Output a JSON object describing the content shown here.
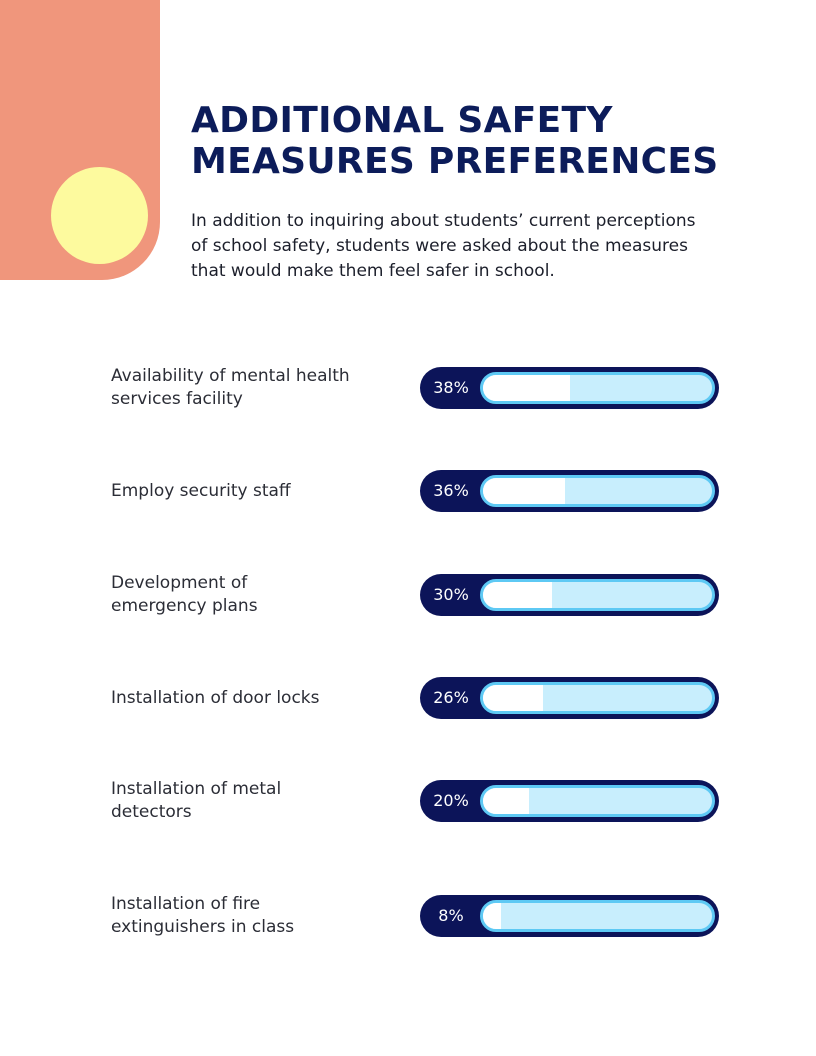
{
  "title": {
    "line1": "ADDITIONAL SAFETY",
    "line2": "MEASURES PREFERENCES"
  },
  "intro": {
    "line1": "In addition to inquiring about students’ current perceptions",
    "line2": "of school safety, students were asked about the measures",
    "line3": "that would make them feel safer in school."
  },
  "colors": {
    "title": "#0c1c5a",
    "deco_block": "#f0967c",
    "deco_circle": "#fdfa9e",
    "bar_pill": "#0c1459",
    "track_border": "#5ec9f4",
    "track_bg": "#c8eefd",
    "fill": "#ffffff"
  },
  "chart_data": {
    "type": "bar",
    "orientation": "horizontal",
    "categories": [
      [
        "Availability of mental health",
        "services facility"
      ],
      [
        "Employ security staff"
      ],
      [
        "Development of",
        "emergency plans"
      ],
      [
        "Installation of door locks"
      ],
      [
        "Installation of metal",
        "detectors"
      ],
      [
        "Installation of fire",
        "extinguishers in class"
      ]
    ],
    "values": [
      38,
      36,
      30,
      26,
      20,
      8
    ],
    "value_labels": [
      "38%",
      "36%",
      "30%",
      "26%",
      "20%",
      "8%"
    ],
    "unit": "%",
    "xlim": [
      0,
      100
    ]
  }
}
